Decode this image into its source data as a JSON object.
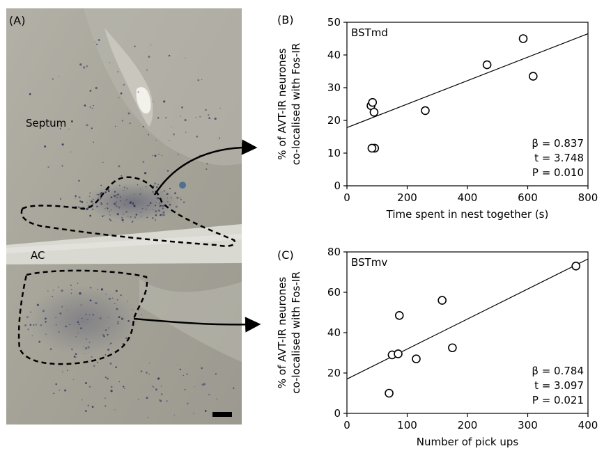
{
  "panel_labels": {
    "a": "(A)",
    "b": "(B)",
    "c": "(C)"
  },
  "micrograph": {
    "septum_label": "Septum",
    "ac_label": "AC",
    "tissue_color": "#a7a59b",
    "stain_color": "#2b2d55"
  },
  "chart_data": [
    {
      "type": "scatter",
      "region": "BSTmd",
      "xlabel": "Time spent in nest together (s)",
      "ylabel_line1": "% of AVT-IR neurones",
      "ylabel_line2": "co-localised with Fos-IR",
      "xlim": [
        0,
        800
      ],
      "ylim": [
        0,
        50
      ],
      "xticks": [
        0,
        200,
        400,
        600,
        800
      ],
      "yticks": [
        0,
        10,
        20,
        30,
        40,
        50
      ],
      "x": [
        80,
        85,
        90,
        92,
        83,
        260,
        465,
        585,
        618
      ],
      "y": [
        24.5,
        25.5,
        22.5,
        11.5,
        11.5,
        23.0,
        37.0,
        45.0,
        33.5
      ],
      "fit": {
        "x": [
          0,
          800
        ],
        "y": [
          17.8,
          46.5
        ]
      },
      "stats": {
        "beta": "β = 0.837",
        "t": "t = 3.748",
        "p": "P = 0.010"
      }
    },
    {
      "type": "scatter",
      "region": "BSTmv",
      "xlabel": "Number of  pick ups",
      "ylabel_line1": "% of AVT-IR neurones",
      "ylabel_line2": "co-localised with Fos-IR",
      "xlim": [
        0,
        400
      ],
      "ylim": [
        0,
        80
      ],
      "xticks": [
        0,
        100,
        200,
        300,
        400
      ],
      "yticks": [
        0,
        20,
        40,
        60,
        80
      ],
      "x": [
        70,
        75,
        85,
        87,
        115,
        158,
        175,
        380
      ],
      "y": [
        10,
        29,
        29.5,
        48.5,
        27,
        56,
        32.5,
        73
      ],
      "fit": {
        "x": [
          0,
          400
        ],
        "y": [
          17.0,
          76.5
        ]
      },
      "stats": {
        "beta": "β = 0.784",
        "t": "t = 3.097",
        "p": "P = 0.021"
      }
    }
  ]
}
